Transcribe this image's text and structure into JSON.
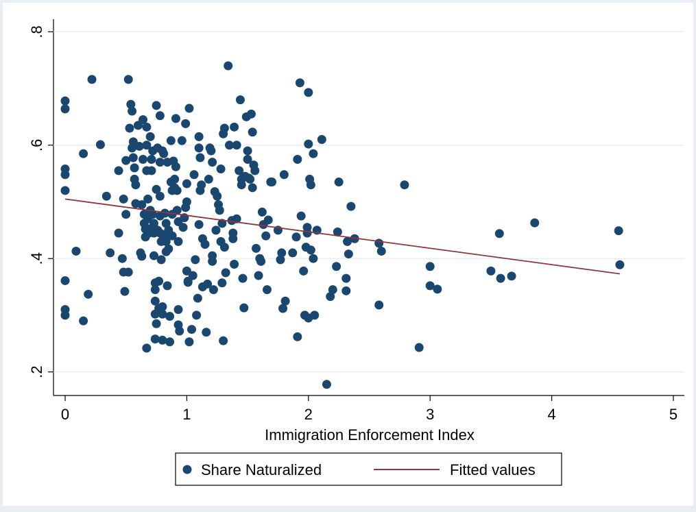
{
  "chart_data": {
    "type": "scatter",
    "xlabel": "Immigration Enforcement Index",
    "ylabel": "",
    "xlim": [
      0,
      5
    ],
    "ylim": [
      0.2,
      0.8
    ],
    "x_ticks": [
      0,
      1,
      2,
      3,
      4,
      5
    ],
    "x_tick_labels": [
      "0",
      "1",
      "2",
      "3",
      "4",
      "5"
    ],
    "y_ticks": [
      0.2,
      0.4,
      0.6,
      0.8
    ],
    "y_tick_labels": [
      ".2",
      ".4",
      ".6",
      ".8"
    ],
    "grid": "horizontal",
    "legend_position": "bottom",
    "colors": {
      "scatter": "#1a476f",
      "fit": "#90353b",
      "background": "#e8eff2",
      "plot": "#ffffff"
    },
    "series": [
      {
        "name": "Share Naturalized",
        "kind": "scatter",
        "points": [
          [
            0,
            0.678
          ],
          [
            0,
            0.664
          ],
          [
            0,
            0.558
          ],
          [
            0,
            0.548
          ],
          [
            0,
            0.52
          ],
          [
            0,
            0.361
          ],
          [
            0,
            0.31
          ],
          [
            0,
            0.3
          ],
          [
            0.09,
            0.413
          ],
          [
            0.15,
            0.29
          ],
          [
            0.15,
            0.585
          ],
          [
            0.19,
            0.337
          ],
          [
            0.22,
            0.716
          ],
          [
            0.29,
            0.601
          ],
          [
            0.34,
            0.51
          ],
          [
            0.37,
            0.41
          ],
          [
            0.44,
            0.445
          ],
          [
            0.44,
            0.555
          ],
          [
            0.47,
            0.4
          ],
          [
            0.48,
            0.505
          ],
          [
            0.48,
            0.376
          ],
          [
            0.49,
            0.342
          ],
          [
            0.5,
            0.478
          ],
          [
            0.5,
            0.573
          ],
          [
            0.52,
            0.716
          ],
          [
            0.52,
            0.376
          ],
          [
            0.53,
            0.63
          ],
          [
            0.54,
            0.672
          ],
          [
            0.55,
            0.66
          ],
          [
            0.55,
            0.595
          ],
          [
            0.56,
            0.606
          ],
          [
            0.56,
            0.578
          ],
          [
            0.57,
            0.56
          ],
          [
            0.57,
            0.54
          ],
          [
            0.58,
            0.53
          ],
          [
            0.58,
            0.497
          ],
          [
            0.6,
            0.635
          ],
          [
            0.61,
            0.598
          ],
          [
            0.62,
            0.41
          ],
          [
            0.63,
            0.404
          ],
          [
            0.63,
            0.495
          ],
          [
            0.64,
            0.575
          ],
          [
            0.64,
            0.645
          ],
          [
            0.65,
            0.478
          ],
          [
            0.65,
            0.462
          ],
          [
            0.66,
            0.452
          ],
          [
            0.66,
            0.438
          ],
          [
            0.67,
            0.632
          ],
          [
            0.67,
            0.6
          ],
          [
            0.67,
            0.555
          ],
          [
            0.67,
            0.242
          ],
          [
            0.68,
            0.505
          ],
          [
            0.68,
            0.47
          ],
          [
            0.69,
            0.452
          ],
          [
            0.69,
            0.445
          ],
          [
            0.7,
            0.615
          ],
          [
            0.7,
            0.485
          ],
          [
            0.71,
            0.575
          ],
          [
            0.71,
            0.555
          ],
          [
            0.72,
            0.59
          ],
          [
            0.72,
            0.478
          ],
          [
            0.72,
            0.455
          ],
          [
            0.73,
            0.462
          ],
          [
            0.73,
            0.445
          ],
          [
            0.73,
            0.405
          ],
          [
            0.74,
            0.357
          ],
          [
            0.74,
            0.345
          ],
          [
            0.74,
            0.325
          ],
          [
            0.74,
            0.302
          ],
          [
            0.74,
            0.258
          ],
          [
            0.75,
            0.67
          ],
          [
            0.75,
            0.522
          ],
          [
            0.75,
            0.285
          ],
          [
            0.76,
            0.45
          ],
          [
            0.76,
            0.595
          ],
          [
            0.77,
            0.36
          ],
          [
            0.77,
            0.312
          ],
          [
            0.78,
            0.652
          ],
          [
            0.78,
            0.57
          ],
          [
            0.78,
            0.51
          ],
          [
            0.78,
            0.475
          ],
          [
            0.78,
            0.445
          ],
          [
            0.79,
            0.43
          ],
          [
            0.79,
            0.398
          ],
          [
            0.8,
            0.59
          ],
          [
            0.8,
            0.315
          ],
          [
            0.8,
            0.302
          ],
          [
            0.8,
            0.256
          ],
          [
            0.81,
            0.585
          ],
          [
            0.82,
            0.48
          ],
          [
            0.82,
            0.442
          ],
          [
            0.83,
            0.462
          ],
          [
            0.83,
            0.43
          ],
          [
            0.83,
            0.412
          ],
          [
            0.84,
            0.57
          ],
          [
            0.84,
            0.352
          ],
          [
            0.85,
            0.45
          ],
          [
            0.85,
            0.417
          ],
          [
            0.86,
            0.298
          ],
          [
            0.86,
            0.253
          ],
          [
            0.87,
            0.608
          ],
          [
            0.87,
            0.535
          ],
          [
            0.88,
            0.52
          ],
          [
            0.88,
            0.478
          ],
          [
            0.88,
            0.44
          ],
          [
            0.89,
            0.572
          ],
          [
            0.9,
            0.525
          ],
          [
            0.9,
            0.54
          ],
          [
            0.91,
            0.562
          ],
          [
            0.91,
            0.647
          ],
          [
            0.92,
            0.52
          ],
          [
            0.92,
            0.485
          ],
          [
            0.93,
            0.43
          ],
          [
            0.93,
            0.465
          ],
          [
            0.93,
            0.31
          ],
          [
            0.93,
            0.283
          ],
          [
            0.94,
            0.272
          ],
          [
            0.96,
            0.608
          ],
          [
            0.97,
            0.455
          ],
          [
            0.98,
            0.472
          ],
          [
            0.99,
            0.638
          ],
          [
            0.99,
            0.49
          ],
          [
            1.0,
            0.5
          ],
          [
            1.0,
            0.532
          ],
          [
            1.0,
            0.378
          ],
          [
            1.01,
            0.36
          ],
          [
            1.01,
            0.358
          ],
          [
            1.02,
            0.665
          ],
          [
            1.02,
            0.253
          ],
          [
            1.04,
            0.275
          ],
          [
            1.05,
            0.37
          ],
          [
            1.06,
            0.548
          ],
          [
            1.07,
            0.398
          ],
          [
            1.08,
            0.3
          ],
          [
            1.09,
            0.33
          ],
          [
            1.1,
            0.46
          ],
          [
            1.1,
            0.615
          ],
          [
            1.1,
            0.595
          ],
          [
            1.11,
            0.578
          ],
          [
            1.11,
            0.52
          ],
          [
            1.12,
            0.53
          ],
          [
            1.13,
            0.435
          ],
          [
            1.13,
            0.35
          ],
          [
            1.15,
            0.425
          ],
          [
            1.16,
            0.27
          ],
          [
            1.17,
            0.355
          ],
          [
            1.18,
            0.54
          ],
          [
            1.19,
            0.595
          ],
          [
            1.2,
            0.59
          ],
          [
            1.21,
            0.57
          ],
          [
            1.21,
            0.405
          ],
          [
            1.21,
            0.395
          ],
          [
            1.22,
            0.345
          ],
          [
            1.23,
            0.518
          ],
          [
            1.24,
            0.45
          ],
          [
            1.25,
            0.51
          ],
          [
            1.26,
            0.495
          ],
          [
            1.27,
            0.485
          ],
          [
            1.28,
            0.43
          ],
          [
            1.28,
            0.558
          ],
          [
            1.29,
            0.462
          ],
          [
            1.29,
            0.357
          ],
          [
            1.3,
            0.62
          ],
          [
            1.3,
            0.255
          ],
          [
            1.31,
            0.42
          ],
          [
            1.31,
            0.63
          ],
          [
            1.32,
            0.375
          ],
          [
            1.34,
            0.74
          ],
          [
            1.35,
            0.6
          ],
          [
            1.37,
            0.467
          ],
          [
            1.38,
            0.445
          ],
          [
            1.38,
            0.435
          ],
          [
            1.39,
            0.39
          ],
          [
            1.39,
            0.632
          ],
          [
            1.41,
            0.6
          ],
          [
            1.41,
            0.47
          ],
          [
            1.43,
            0.555
          ],
          [
            1.44,
            0.68
          ],
          [
            1.45,
            0.54
          ],
          [
            1.45,
            0.53
          ],
          [
            1.46,
            0.365
          ],
          [
            1.47,
            0.313
          ],
          [
            1.48,
            0.545
          ],
          [
            1.49,
            0.65
          ],
          [
            1.5,
            0.59
          ],
          [
            1.5,
            0.575
          ],
          [
            1.51,
            0.542
          ],
          [
            1.52,
            0.54
          ],
          [
            1.53,
            0.655
          ],
          [
            1.54,
            0.623
          ],
          [
            1.54,
            0.525
          ],
          [
            1.55,
            0.565
          ],
          [
            1.56,
            0.555
          ],
          [
            1.57,
            0.418
          ],
          [
            1.59,
            0.37
          ],
          [
            1.6,
            0.4
          ],
          [
            1.61,
            0.395
          ],
          [
            1.62,
            0.482
          ],
          [
            1.63,
            0.46
          ],
          [
            1.65,
            0.44
          ],
          [
            1.66,
            0.345
          ],
          [
            1.67,
            0.468
          ],
          [
            1.69,
            0.535
          ],
          [
            1.7,
            0.535
          ],
          [
            1.75,
            0.45
          ],
          [
            1.77,
            0.398
          ],
          [
            1.78,
            0.41
          ],
          [
            1.79,
            0.312
          ],
          [
            1.8,
            0.548
          ],
          [
            1.81,
            0.325
          ],
          [
            1.87,
            0.41
          ],
          [
            1.9,
            0.438
          ],
          [
            1.91,
            0.262
          ],
          [
            1.91,
            0.575
          ],
          [
            1.93,
            0.71
          ],
          [
            1.94,
            0.475
          ],
          [
            1.96,
            0.378
          ],
          [
            1.97,
            0.3
          ],
          [
            1.98,
            0.42
          ],
          [
            1.99,
            0.455
          ],
          [
            1.99,
            0.445
          ],
          [
            2.0,
            0.693
          ],
          [
            2.0,
            0.602
          ],
          [
            2.0,
            0.295
          ],
          [
            2.01,
            0.54
          ],
          [
            2.02,
            0.53
          ],
          [
            2.02,
            0.415
          ],
          [
            2.04,
            0.585
          ],
          [
            2.04,
            0.4
          ],
          [
            2.05,
            0.3
          ],
          [
            2.07,
            0.45
          ],
          [
            2.11,
            0.61
          ],
          [
            2.15,
            0.178
          ],
          [
            2.18,
            0.333
          ],
          [
            2.2,
            0.345
          ],
          [
            2.23,
            0.386
          ],
          [
            2.24,
            0.447
          ],
          [
            2.25,
            0.535
          ],
          [
            2.31,
            0.365
          ],
          [
            2.31,
            0.343
          ],
          [
            2.32,
            0.43
          ],
          [
            2.33,
            0.408
          ],
          [
            2.35,
            0.492
          ],
          [
            2.38,
            0.435
          ],
          [
            2.58,
            0.427
          ],
          [
            2.58,
            0.318
          ],
          [
            2.6,
            0.413
          ],
          [
            2.79,
            0.53
          ],
          [
            2.91,
            0.243
          ],
          [
            3.0,
            0.386
          ],
          [
            3.0,
            0.352
          ],
          [
            3.06,
            0.346
          ],
          [
            3.5,
            0.378
          ],
          [
            3.57,
            0.444
          ],
          [
            3.58,
            0.365
          ],
          [
            3.67,
            0.369
          ],
          [
            3.86,
            0.463
          ],
          [
            4.55,
            0.449
          ],
          [
            4.56,
            0.389
          ]
        ]
      },
      {
        "name": "Fitted values",
        "kind": "line",
        "points": [
          [
            0,
            0.505
          ],
          [
            4.56,
            0.373
          ]
        ]
      }
    ]
  }
}
